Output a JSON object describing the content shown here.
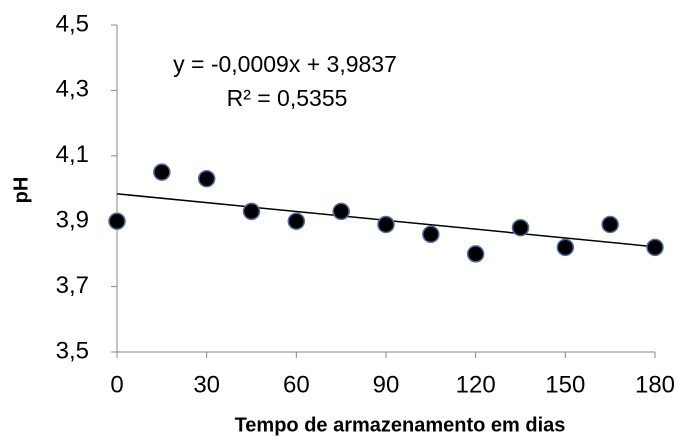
{
  "chart_data": {
    "type": "scatter",
    "x_label": "Tempo de armazenamento em dias",
    "y_label": "pH",
    "annotations": [
      "y = -0,0009x + 3,9837",
      "R² = 0,5355"
    ],
    "x": [
      0,
      15,
      30,
      45,
      60,
      75,
      90,
      105,
      120,
      135,
      150,
      165,
      180
    ],
    "values": [
      3.9,
      4.05,
      4.03,
      3.93,
      3.9,
      3.93,
      3.89,
      3.86,
      3.8,
      3.88,
      3.82,
      3.89,
      3.82
    ],
    "color": "#000000",
    "edge_color": "#4a6fa5",
    "trendline": {
      "x": [
        0,
        180
      ],
      "values": [
        3.9837,
        3.8217
      ],
      "color": "#000000"
    },
    "xlim": [
      0,
      180
    ],
    "xticks": [
      0,
      30,
      60,
      90,
      120,
      150,
      180
    ],
    "ylim": [
      3.5,
      4.5
    ],
    "yticks": [
      {
        "value": 3.5,
        "label": "3,5"
      },
      {
        "value": 3.7,
        "label": "3,7"
      },
      {
        "value": 3.9,
        "label": "3,9"
      },
      {
        "value": 4.1,
        "label": "4,1"
      },
      {
        "value": 4.3,
        "label": "4,3"
      },
      {
        "value": 4.5,
        "label": "4,5"
      }
    ],
    "grid": false
  }
}
